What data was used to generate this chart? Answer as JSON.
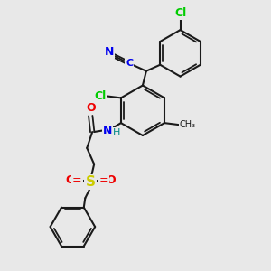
{
  "background_color": "#e8e8e8",
  "bond_color": "#1a1a1a",
  "colors": {
    "N": "#0000ee",
    "Cl": "#00cc00",
    "NH": "#0000ee",
    "H": "#008888",
    "O": "#ee0000",
    "S": "#cccc00",
    "C": "#1a1a1a",
    "methyl": "#1a1a1a"
  },
  "figsize": [
    3.0,
    3.0
  ],
  "dpi": 100
}
